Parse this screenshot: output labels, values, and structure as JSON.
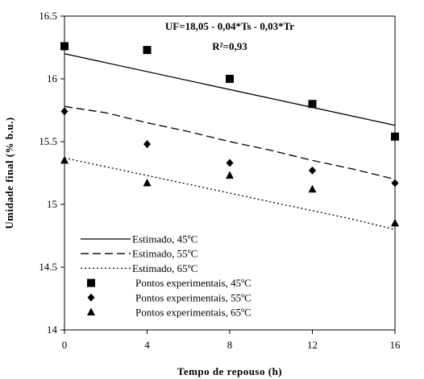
{
  "chart_data": {
    "type": "scatter",
    "xlabel": "Tempo de repouso (h)",
    "ylabel": "Umidade final (% b.u.)",
    "xlim": [
      0,
      16
    ],
    "ylim": [
      14,
      16.5
    ],
    "x_ticks": [
      0,
      4,
      8,
      12,
      16
    ],
    "x_tick_labels": [
      "0",
      "4",
      "8",
      "12",
      "16"
    ],
    "y_ticks": [
      14,
      14.5,
      15,
      15.5,
      16,
      16.5
    ],
    "y_tick_labels": [
      "14",
      "14.5",
      "15",
      "15.5",
      "16",
      "16.5"
    ],
    "grid": false,
    "legend_position": "bottom-left",
    "annotations": {
      "equation": "UF=18,05 - 0,04*Ts - 0,03*Tr",
      "r2": "R²=0,93"
    },
    "series": [
      {
        "name": "Estimado, 45ºC",
        "kind": "line",
        "style": "solid",
        "color": "#000000",
        "x": [
          0,
          16
        ],
        "y": [
          16.2,
          15.63
        ]
      },
      {
        "name": "Estimado, 55ºC",
        "kind": "line",
        "style": "dashed",
        "color": "#000000",
        "x": [
          0,
          2,
          4,
          6,
          8,
          10,
          12,
          14,
          16
        ],
        "y": [
          15.78,
          15.73,
          15.65,
          15.58,
          15.5,
          15.43,
          15.35,
          15.28,
          15.2
        ]
      },
      {
        "name": "Estimado, 65ºC",
        "kind": "line",
        "style": "dotted",
        "color": "#000000",
        "x": [
          0,
          2,
          4,
          6,
          8,
          10,
          12,
          14,
          16
        ],
        "y": [
          15.37,
          15.3,
          15.23,
          15.16,
          15.09,
          15.02,
          14.95,
          14.88,
          14.8
        ]
      },
      {
        "name": "Pontos experimentais, 45ºC",
        "kind": "points",
        "marker": "square",
        "color": "#000000",
        "x": [
          0,
          4,
          8,
          12,
          16
        ],
        "y": [
          16.26,
          16.23,
          16.0,
          15.8,
          15.54
        ]
      },
      {
        "name": "Pontos experimentais, 55ºC",
        "kind": "points",
        "marker": "diamond",
        "color": "#000000",
        "x": [
          0,
          4,
          8,
          12,
          16
        ],
        "y": [
          15.74,
          15.48,
          15.33,
          15.27,
          15.17
        ]
      },
      {
        "name": "Pontos experimentais, 65ºC",
        "kind": "points",
        "marker": "triangle",
        "color": "#000000",
        "x": [
          0,
          4,
          8,
          12,
          16
        ],
        "y": [
          15.35,
          15.17,
          15.23,
          15.12,
          14.85
        ]
      }
    ]
  }
}
